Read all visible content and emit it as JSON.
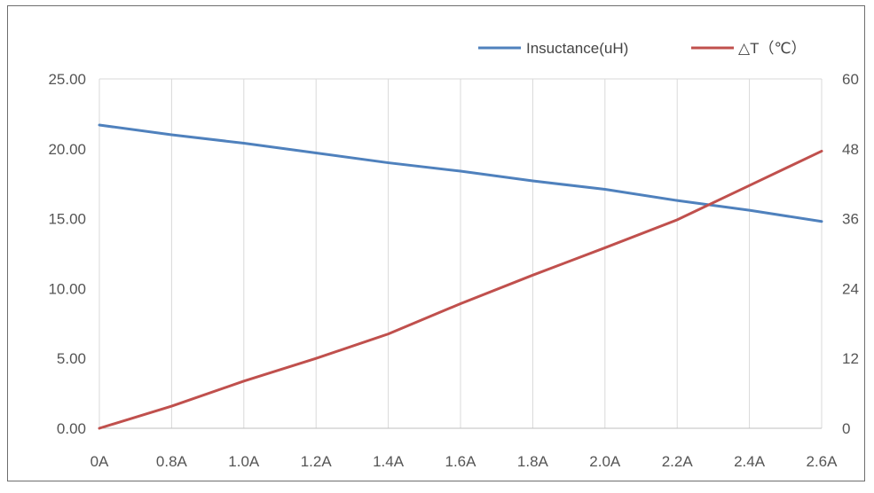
{
  "chart_data": {
    "type": "line",
    "title": "",
    "xlabel": "",
    "ylabel": "",
    "y2label": "",
    "categories": [
      "0A",
      "0.8A",
      "1.0A",
      "1.2A",
      "1.4A",
      "1.6A",
      "1.8A",
      "2.0A",
      "2.2A",
      "2.4A",
      "2.6A"
    ],
    "y_ticks": [
      "0.00",
      "5.00",
      "10.00",
      "15.00",
      "20.00",
      "25.00"
    ],
    "y2_ticks": [
      "0",
      "12",
      "24",
      "36",
      "48",
      "60"
    ],
    "ylim": [
      0,
      25
    ],
    "y2lim": [
      0,
      60
    ],
    "grid": "vertical",
    "legend_position": "top-right",
    "series": [
      {
        "name": "Insuctance(uH)",
        "axis": "left",
        "color": "#4F81BD",
        "values": [
          21.7,
          21.0,
          20.4,
          19.7,
          19.0,
          18.4,
          17.7,
          17.1,
          16.3,
          15.6,
          14.8
        ]
      },
      {
        "name": "△T（℃）",
        "axis": "right",
        "color": "#C0504D",
        "values": [
          0,
          3.8,
          8.1,
          12.0,
          16.2,
          21.4,
          26.3,
          31.0,
          35.8,
          41.7,
          47.6
        ]
      }
    ]
  }
}
